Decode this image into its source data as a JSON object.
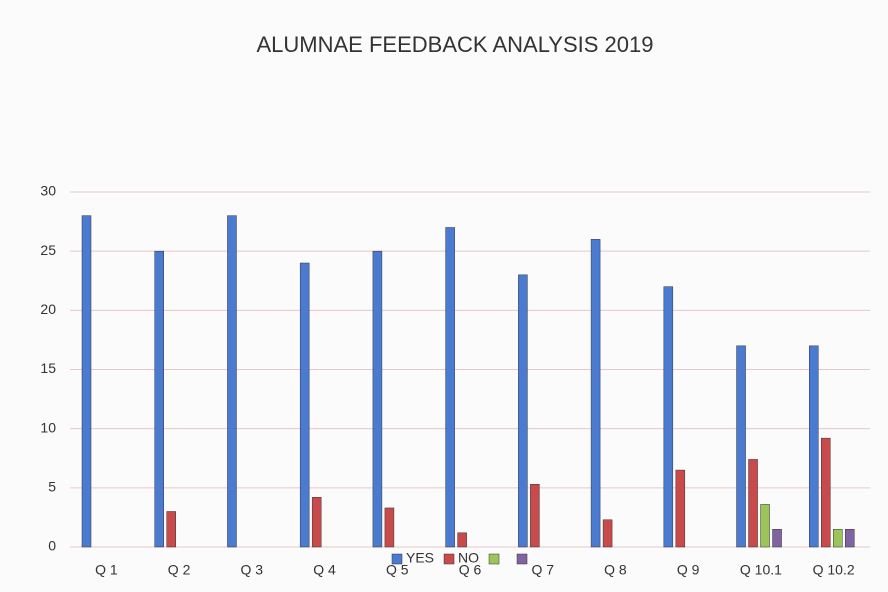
{
  "chart_data": {
    "type": "bar",
    "title": "ALUMNAE FEEDBACK ANALYSIS 2019",
    "categories": [
      "Q 1",
      "Q 2",
      "Q 3",
      "Q 4",
      "Q 5",
      "Q 6",
      "Q 7",
      "Q 8",
      "Q 9",
      "Q 10.1",
      "Q 10.2"
    ],
    "series": [
      {
        "name": "YES",
        "color": "#4a7bd0",
        "values": [
          28,
          25,
          28,
          24,
          25,
          27,
          23,
          26,
          22,
          17,
          17
        ]
      },
      {
        "name": "NO",
        "color": "#c84a4a",
        "values": [
          0,
          3,
          0,
          4.2,
          3.3,
          1.2,
          5.3,
          2.3,
          6.5,
          7.4,
          9.2
        ]
      },
      {
        "name": null,
        "color": "#9bc45a",
        "values": [
          0,
          0,
          0,
          0,
          0,
          0,
          0,
          0,
          0,
          3.6,
          1.5
        ]
      },
      {
        "name": null,
        "color": "#8064a2",
        "values": [
          0,
          0,
          0,
          0,
          0,
          0,
          0,
          0,
          0,
          1.5,
          1.5
        ]
      }
    ],
    "ylim": [
      0,
      30
    ],
    "yticks": [
      0,
      5,
      10,
      15,
      20,
      25,
      30
    ],
    "grid": true,
    "legend": "bottom"
  }
}
